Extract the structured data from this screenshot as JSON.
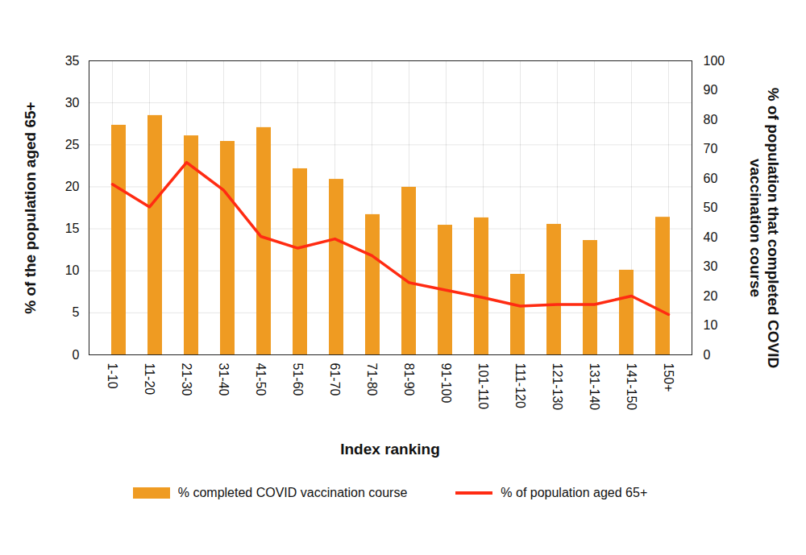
{
  "chart_data": {
    "type": "bar",
    "x_label": "Index ranking",
    "y_label": "% of the population aged 65+",
    "y2_label": "% of population that completed COVID vaccination course",
    "categories": [
      "1-10",
      "11-20",
      "21-30",
      "31-40",
      "41-50",
      "51-60",
      "61-70",
      "71-80",
      "81-90",
      "91-100",
      "101-110",
      "111-120",
      "121-130",
      "131-140",
      "141-150",
      "150+"
    ],
    "series": [
      {
        "name": "% completed COVID vaccination course",
        "type": "bar",
        "axis": "y2",
        "color": "#ef9b22",
        "values": [
          78.1,
          81.4,
          74.5,
          72.6,
          77.3,
          63.3,
          59.7,
          47.7,
          57.0,
          44.1,
          46.6,
          27.4,
          44.4,
          38.9,
          28.8,
          46.8
        ]
      },
      {
        "name": "% of population aged 65+",
        "type": "line",
        "color": "#ff2b12",
        "values": [
          20.3,
          17.6,
          22.9,
          19.6,
          14.1,
          12.7,
          13.8,
          11.8,
          8.6,
          7.7,
          6.8,
          5.8,
          6.0,
          6.0,
          7.0,
          4.8
        ]
      }
    ],
    "ylim": [
      0,
      35
    ],
    "yticks": [
      0,
      5,
      10,
      15,
      20,
      25,
      30,
      35
    ],
    "y2lim": [
      0,
      100
    ],
    "y2ticks": [
      0,
      10,
      20,
      30,
      40,
      50,
      60,
      70,
      80,
      90,
      100
    ],
    "grid": true,
    "legend": "bottom"
  }
}
